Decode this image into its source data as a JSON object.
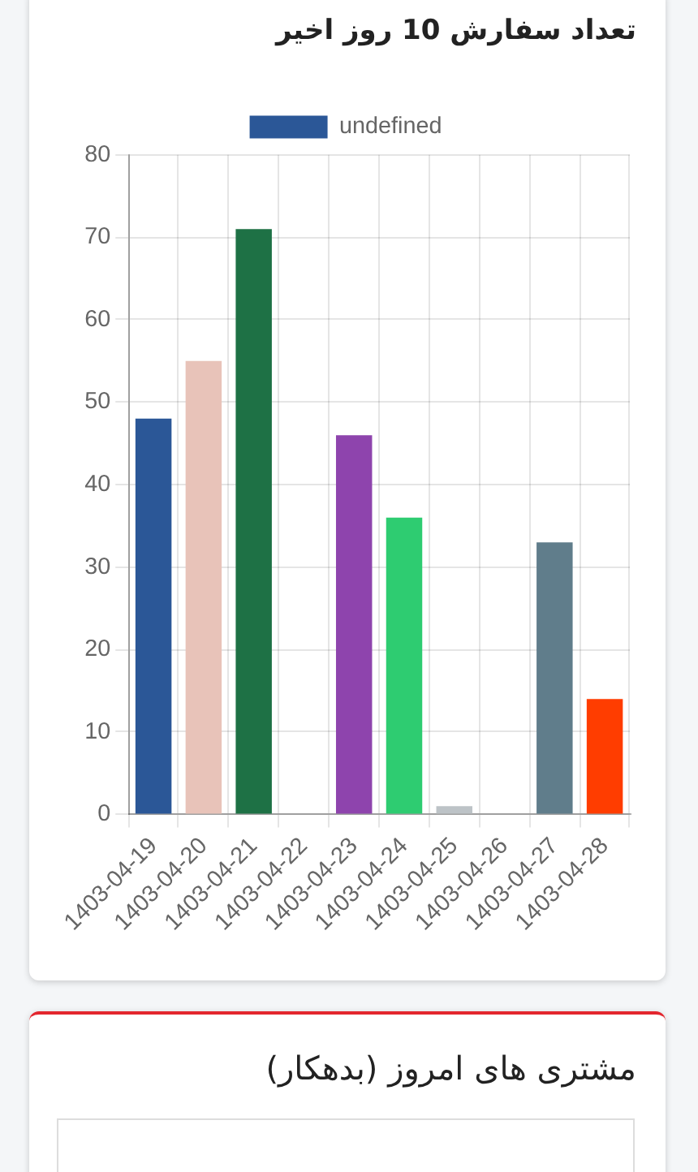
{
  "chart_data": [
    {
      "type": "bar",
      "title": "تعداد سفارش 10 روز اخیر",
      "categories": [
        "1403-04-19",
        "1403-04-20",
        "1403-04-21",
        "1403-04-22",
        "1403-04-23",
        "1403-04-24",
        "1403-04-25",
        "1403-04-26",
        "1403-04-27",
        "1403-04-28"
      ],
      "series": [
        {
          "name": "undefined",
          "colors": [
            "#2b5797",
            "#e8c3b9",
            "#1e7145",
            null,
            "#8e44ad",
            "#2ecc71",
            "#bdc3c7",
            null,
            "#607d8b",
            "#ff3d00"
          ],
          "values": [
            48,
            55,
            71,
            0,
            46,
            36,
            1,
            0,
            33,
            14
          ]
        }
      ],
      "ylim": [
        0,
        80
      ],
      "yticks": [
        0,
        10,
        20,
        30,
        40,
        50,
        60,
        70,
        80
      ],
      "grid": true,
      "legend": "top"
    },
    {
      "type": "other",
      "title": "مشتری های امروز (بدهکار)"
    }
  ]
}
